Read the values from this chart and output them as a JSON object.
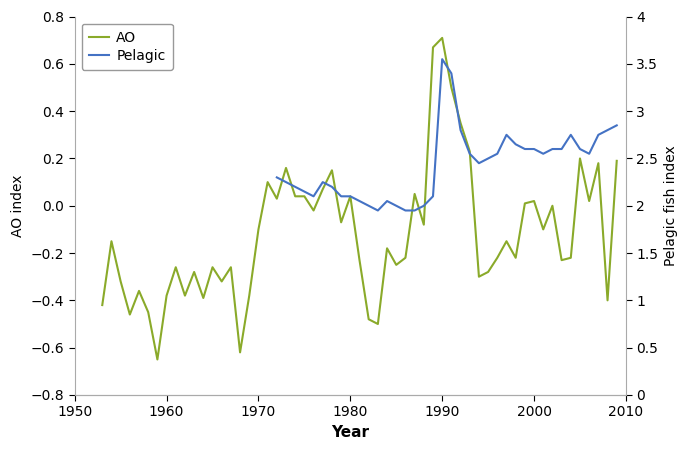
{
  "ao_years": [
    1953,
    1954,
    1955,
    1956,
    1957,
    1958,
    1959,
    1960,
    1961,
    1962,
    1963,
    1964,
    1965,
    1966,
    1967,
    1968,
    1969,
    1970,
    1971,
    1972,
    1973,
    1974,
    1975,
    1976,
    1977,
    1978,
    1979,
    1980,
    1981,
    1982,
    1983,
    1984,
    1985,
    1986,
    1987,
    1988,
    1989,
    1990,
    1991,
    1992,
    1993,
    1994,
    1995,
    1996,
    1997,
    1998,
    1999,
    2000,
    2001,
    2002,
    2003,
    2004,
    2005,
    2006,
    2007,
    2008,
    2009
  ],
  "ao_values": [
    -0.42,
    -0.15,
    -0.32,
    -0.46,
    -0.36,
    -0.45,
    -0.65,
    -0.38,
    -0.26,
    -0.38,
    -0.28,
    -0.39,
    -0.26,
    -0.32,
    -0.26,
    -0.62,
    -0.38,
    -0.1,
    0.1,
    0.03,
    0.16,
    0.04,
    0.04,
    -0.02,
    0.07,
    0.15,
    -0.07,
    0.04,
    -0.23,
    -0.48,
    -0.5,
    -0.18,
    -0.25,
    -0.22,
    0.05,
    -0.08,
    0.67,
    0.71,
    0.5,
    0.35,
    0.23,
    -0.3,
    -0.28,
    -0.22,
    -0.15,
    -0.22,
    0.01,
    0.02,
    -0.1,
    0.0,
    -0.23,
    -0.22,
    0.2,
    0.02,
    0.18,
    -0.4,
    0.19
  ],
  "pelagic_years": [
    1972,
    1973,
    1974,
    1975,
    1976,
    1977,
    1978,
    1979,
    1980,
    1981,
    1982,
    1983,
    1984,
    1985,
    1986,
    1987,
    1988,
    1989,
    1990,
    1991,
    1992,
    1993,
    1994,
    1995,
    1996,
    1997,
    1998,
    1999,
    2000,
    2001,
    2002,
    2003,
    2004,
    2005,
    2006,
    2007,
    2008,
    2009
  ],
  "pelagic_values": [
    2.3,
    2.25,
    2.2,
    2.15,
    2.1,
    2.25,
    2.2,
    2.1,
    2.1,
    2.05,
    2.0,
    1.95,
    2.05,
    2.0,
    1.95,
    1.95,
    2.0,
    2.1,
    3.55,
    3.4,
    2.8,
    2.55,
    2.45,
    2.5,
    2.55,
    2.75,
    2.65,
    2.6,
    2.6,
    2.55,
    2.6,
    2.6,
    2.75,
    2.6,
    2.55,
    2.75,
    2.8,
    2.85
  ],
  "ao_color": "#8aaa2a",
  "pelagic_color": "#4472c4",
  "xlim": [
    1950,
    2010
  ],
  "ylim_left": [
    -0.8,
    0.8
  ],
  "ylim_right": [
    0,
    4
  ],
  "xlabel": "Year",
  "ylabel_left": "AO index",
  "ylabel_right": "Pelagic fish index",
  "legend_labels": [
    "AO",
    "Pelagic"
  ],
  "xticks": [
    1950,
    1960,
    1970,
    1980,
    1990,
    2000,
    2010
  ],
  "yticks_left": [
    -0.8,
    -0.6,
    -0.4,
    -0.2,
    0.0,
    0.2,
    0.4,
    0.6,
    0.8
  ],
  "yticks_right": [
    0,
    0.5,
    1.0,
    1.5,
    2.0,
    2.5,
    3.0,
    3.5,
    4.0
  ],
  "linewidth": 1.5,
  "figsize": [
    6.89,
    4.51
  ],
  "dpi": 100
}
